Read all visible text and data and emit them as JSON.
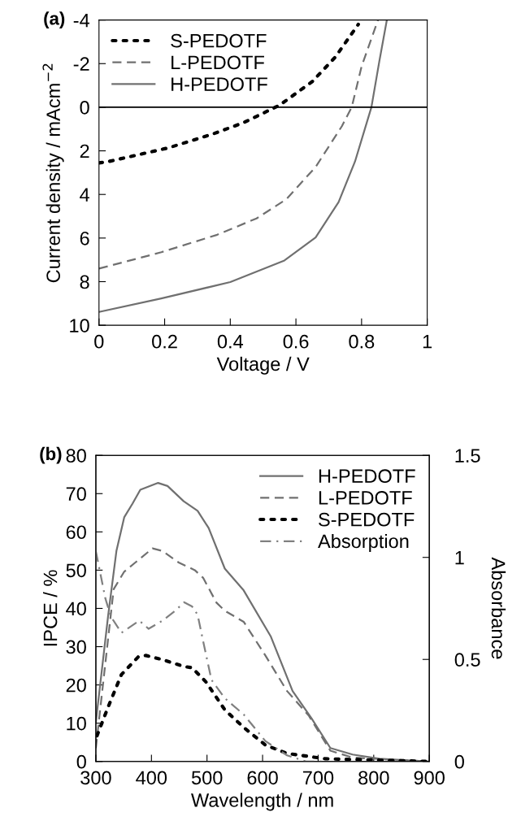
{
  "chart_data": [
    {
      "type": "line",
      "title": "(a)",
      "xlabel": "Voltage / V",
      "ylabel": "Current density / mAcm$^{−2}$",
      "xlim": [
        0,
        1
      ],
      "xticks": [
        0,
        0.2,
        0.4,
        0.6,
        0.8,
        1
      ],
      "ylim": [
        10,
        -4
      ],
      "yticks": [
        {
          "value": -4,
          "label": "-4"
        },
        {
          "value": -2,
          "label": "-2"
        },
        0,
        2,
        4,
        6,
        8,
        10
      ],
      "legend": "top left",
      "grid": false,
      "ref_lines": [
        {
          "axis": "y",
          "value": 0,
          "color": "#000000",
          "line_style": "solid"
        }
      ],
      "series": [
        {
          "name": "S-PEDOTF",
          "color": "#000000",
          "line_style": "dotted",
          "x": [
            0,
            0.02,
            0.21,
            0.35,
            0.44,
            0.55,
            0.65,
            0.72,
            0.79
          ],
          "values": [
            2.55,
            2.52,
            1.87,
            1.21,
            0.71,
            -0.09,
            -1.18,
            -2.3,
            -3.8
          ]
        },
        {
          "name": "L-PEDOTF",
          "color": "#707070",
          "line_style": "dashed",
          "x": [
            0,
            0.19,
            0.36,
            0.48,
            0.57,
            0.66,
            0.74,
            0.77,
            0.8,
            0.85
          ],
          "values": [
            7.4,
            6.65,
            5.85,
            5.1,
            4.23,
            2.74,
            0.87,
            0,
            -1.87,
            -4
          ]
        },
        {
          "name": "H-PEDOTF",
          "color": "#707070",
          "line_style": "solid",
          "x": [
            0,
            0.19,
            0.4,
            0.565,
            0.66,
            0.73,
            0.78,
            0.83,
            0.854,
            0.877
          ],
          "values": [
            9.39,
            8.77,
            8.02,
            7.03,
            5.97,
            4.35,
            2.49,
            0,
            -2.1,
            -4
          ]
        }
      ]
    },
    {
      "type": "line",
      "title": "(b)",
      "xlabel": "Wavelength / nm",
      "ylabel": "IPCE / %",
      "y2label": "Absorbance",
      "xlim": [
        300,
        900
      ],
      "xticks": [
        300,
        400,
        500,
        600,
        700,
        800,
        900
      ],
      "ylim": [
        0,
        80
      ],
      "yticks": [
        0,
        10,
        20,
        30,
        40,
        50,
        60,
        70,
        80
      ],
      "y2lim": [
        0,
        1.5
      ],
      "y2ticks": [
        0,
        0.5,
        1,
        1.5
      ],
      "legend": "top right",
      "grid": false,
      "series": [
        {
          "name": "H-PEDOTF",
          "color": "#707070",
          "line_style": "solid",
          "x": [
            300,
            322,
            337,
            351,
            366,
            380,
            412,
            429,
            458,
            483,
            503,
            532,
            566,
            615,
            654,
            688,
            722,
            762,
            810,
            898
          ],
          "values": [
            10.3,
            38,
            55,
            63.8,
            67.4,
            71,
            72.8,
            72,
            68,
            65.5,
            61,
            50.4,
            44.7,
            32.6,
            18.4,
            11.3,
            3.5,
            1.8,
            0.7,
            0
          ]
        },
        {
          "name": "L-PEDOTF",
          "color": "#707070",
          "line_style": "dashed",
          "x": [
            300,
            332,
            351,
            371,
            402,
            420,
            449,
            478,
            493,
            517,
            532,
            566,
            605,
            644,
            683,
            722,
            762,
            898
          ],
          "values": [
            3.5,
            45,
            49.6,
            52,
            55.7,
            55,
            52,
            50,
            48,
            41.5,
            39.4,
            36.5,
            27.7,
            18.4,
            12,
            2.8,
            1,
            0
          ]
        },
        {
          "name": "S-PEDOTF",
          "color": "#000000",
          "line_style": "dotted",
          "x": [
            302,
            322,
            346,
            376,
            390,
            420,
            459,
            473,
            498,
            532,
            566,
            605,
            644,
            713,
            898
          ],
          "values": [
            6.7,
            14.2,
            22.7,
            27.3,
            27.7,
            26.6,
            24.8,
            24.5,
            20.8,
            13.5,
            8.9,
            4.3,
            2.1,
            0.7,
            0
          ]
        },
        {
          "name": "Absorption",
          "color": "#808080",
          "line_style": "dashdot",
          "axis": "y2",
          "x": [
            300,
            317,
            327,
            346,
            378,
            395,
            420,
            439,
            459,
            473,
            483,
            493,
            508,
            532,
            566,
            605,
            644,
            678,
            713
          ],
          "values": [
            1.03,
            0.8,
            0.71,
            0.63,
            0.69,
            0.65,
            0.69,
            0.73,
            0.78,
            0.76,
            0.72,
            0.59,
            0.4,
            0.31,
            0.23,
            0.1,
            0.03,
            0,
            0
          ]
        }
      ]
    }
  ]
}
